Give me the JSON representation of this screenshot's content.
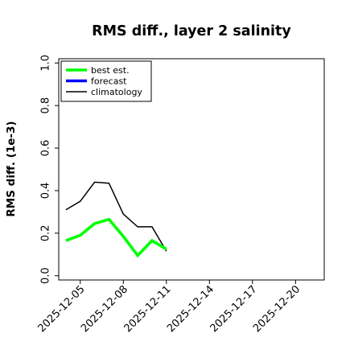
{
  "chart_data": {
    "type": "line",
    "title": "RMS diff., layer 2 salinity",
    "xlabel": "",
    "ylabel": "RMS diff. (1e-3)",
    "ylim": [
      -0.02,
      1.02
    ],
    "yticks": [
      0.0,
      0.2,
      0.4,
      0.6,
      0.8,
      1.0
    ],
    "ytick_labels": [
      "0.0",
      "0.2",
      "0.4",
      "0.6",
      "0.8",
      "1.0"
    ],
    "xlim": [
      "2025-12-03T12:00",
      "2025-12-22T00:00"
    ],
    "xticks": [
      "2025-12-05",
      "2025-12-08",
      "2025-12-11",
      "2025-12-14",
      "2025-12-17",
      "2025-12-20"
    ],
    "xtick_colors": [
      "#000000",
      "#000000",
      "#228b22",
      "#000000",
      "#000000",
      "#000000"
    ],
    "grid": false,
    "legend_position": "top-left",
    "series": [
      {
        "name": "best est.",
        "color": "#00ff00",
        "line_width": "thick",
        "x": [
          "2025-12-04",
          "2025-12-05",
          "2025-12-06",
          "2025-12-07",
          "2025-12-08",
          "2025-12-09",
          "2025-12-10",
          "2025-12-11"
        ],
        "values": [
          0.165,
          0.19,
          0.245,
          0.265,
          0.185,
          0.095,
          0.165,
          0.125
        ]
      },
      {
        "name": "forecast",
        "color": "#0000ff",
        "line_width": "thick",
        "x": [],
        "values": []
      },
      {
        "name": "climatology",
        "color": "#000000",
        "line_width": "thin",
        "x": [
          "2025-12-04",
          "2025-12-05",
          "2025-12-06",
          "2025-12-07",
          "2025-12-08",
          "2025-12-09",
          "2025-12-10",
          "2025-12-11"
        ],
        "values": [
          0.31,
          0.35,
          0.44,
          0.435,
          0.29,
          0.23,
          0.23,
          0.115
        ]
      }
    ]
  }
}
